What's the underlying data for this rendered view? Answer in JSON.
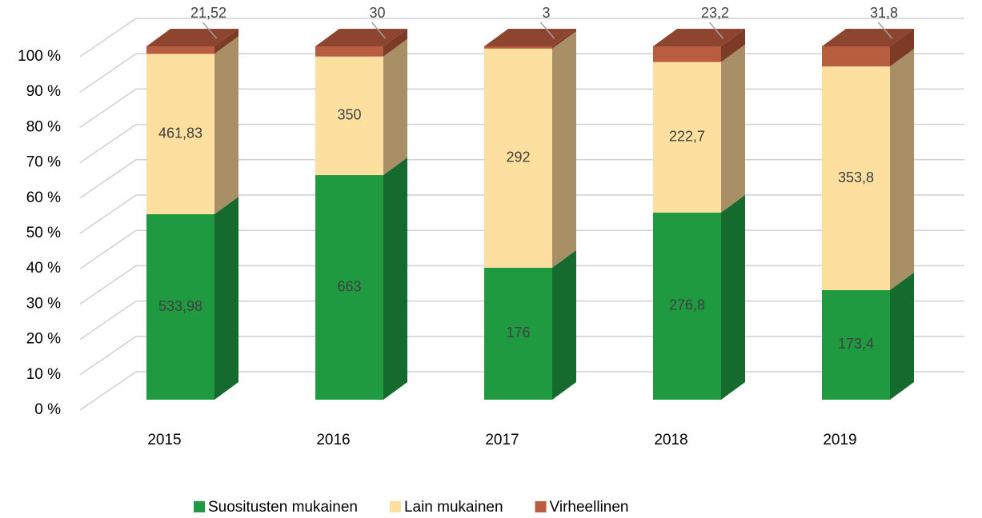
{
  "chart_data": {
    "type": "bar",
    "stacking": "percent",
    "categories": [
      "2015",
      "2016",
      "2017",
      "2018",
      "2019"
    ],
    "series": [
      {
        "name": "Suositusten mukainen",
        "color": "#1f9a41",
        "values": [
          533.98,
          663,
          176,
          276.8,
          173.4
        ],
        "value_labels": [
          "533,98",
          "663",
          "176",
          "276,8",
          "173,4"
        ]
      },
      {
        "name": "Lain mukainen",
        "color": "#fde0a0",
        "values": [
          461.83,
          350,
          292,
          222.7,
          353.8
        ],
        "value_labels": [
          "461,83",
          "350",
          "292",
          "222,7",
          "353,8"
        ]
      },
      {
        "name": "Virheellinen",
        "color": "#b95d40",
        "values": [
          21.52,
          30,
          3,
          23.2,
          31.8
        ],
        "value_labels": [
          "21,52",
          "30",
          "3",
          "23,2",
          "31,8"
        ]
      }
    ],
    "ylim": [
      0,
      100
    ],
    "yticks": [
      {
        "value": 0,
        "label": "0 %"
      },
      {
        "value": 10,
        "label": "10 %"
      },
      {
        "value": 20,
        "label": "20 %"
      },
      {
        "value": 30,
        "label": "30 %"
      },
      {
        "value": 40,
        "label": "40 %"
      },
      {
        "value": 50,
        "label": "50 %"
      },
      {
        "value": 60,
        "label": "60 %"
      },
      {
        "value": 70,
        "label": "70 %"
      },
      {
        "value": 80,
        "label": "80 %"
      },
      {
        "value": 90,
        "label": "90 %"
      },
      {
        "value": 100,
        "label": "100 %"
      }
    ],
    "grid": true,
    "legend": "bottom"
  }
}
